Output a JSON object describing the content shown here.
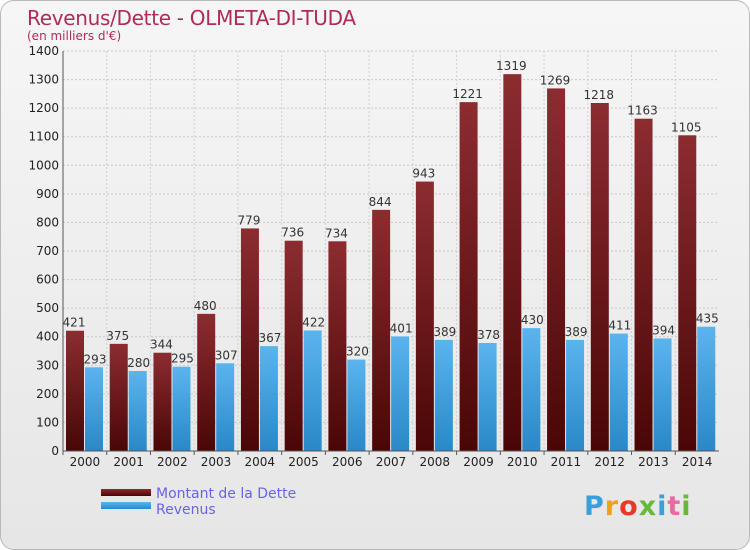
{
  "header": {
    "title": "Revenus/Dette - OLMETA-DI-TUDA",
    "subtitle": "(en milliers d'€)"
  },
  "logo": {
    "text": "Proxiti"
  },
  "colors": {
    "dette_top": "#8c2c30",
    "dette_bottom": "#4a0606",
    "revenus_top": "#5ab4ee",
    "revenus_bottom": "#2a88c8",
    "title": "#b22a5a",
    "legend_text": "#6a62e8"
  },
  "chart_data": {
    "type": "bar",
    "title": "Revenus/Dette - OLMETA-DI-TUDA",
    "subtitle": "(en milliers d'€)",
    "categories": [
      "2000",
      "2001",
      "2002",
      "2003",
      "2004",
      "2005",
      "2006",
      "2007",
      "2008",
      "2009",
      "2010",
      "2011",
      "2012",
      "2013",
      "2014"
    ],
    "series": [
      {
        "name": "Montant de la Dette",
        "values": [
          421,
          375,
          344,
          480,
          779,
          736,
          734,
          844,
          943,
          1221,
          1319,
          1269,
          1218,
          1163,
          1105
        ]
      },
      {
        "name": "Revenus",
        "values": [
          293,
          280,
          295,
          307,
          367,
          422,
          320,
          401,
          389,
          378,
          430,
          389,
          411,
          394,
          435
        ]
      }
    ],
    "ylim": [
      0,
      1400
    ],
    "yticks": [
      0,
      100,
      200,
      300,
      400,
      500,
      600,
      700,
      800,
      900,
      1000,
      1100,
      1200,
      1300,
      1400
    ],
    "grid": true,
    "legend": "bottom-left",
    "xlabel": "",
    "ylabel": ""
  }
}
